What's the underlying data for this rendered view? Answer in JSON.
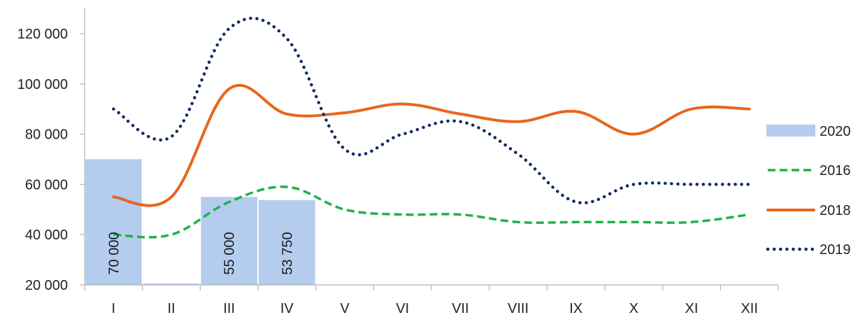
{
  "chart_data": {
    "type": "line",
    "title": "",
    "xlabel": "",
    "ylabel": "",
    "categories": [
      "I",
      "II",
      "III",
      "IV",
      "V",
      "VI",
      "VII",
      "VIII",
      "IX",
      "X",
      "XI",
      "XII"
    ],
    "ylim": [
      20000,
      130000
    ],
    "y_ticks": [
      {
        "value": 20000,
        "label": "20 000"
      },
      {
        "value": 40000,
        "label": "40 000"
      },
      {
        "value": 60000,
        "label": "60 000"
      },
      {
        "value": 80000,
        "label": "80 000"
      },
      {
        "value": 100000,
        "label": "100 000"
      },
      {
        "value": 120000,
        "label": "120 000"
      }
    ],
    "grid": false,
    "legend_position": "right",
    "series": [
      {
        "name": "2020",
        "kind": "bar",
        "color": "#b4cdee",
        "values": [
          70000,
          20000,
          55000,
          53750,
          null,
          null,
          null,
          null,
          null,
          null,
          null,
          null
        ],
        "data_labels": [
          "70 000",
          "",
          "55 000",
          "53 750",
          "",
          "",
          "",
          "",
          "",
          "",
          "",
          ""
        ]
      },
      {
        "name": "2016",
        "kind": "line",
        "style": "dashed",
        "color": "#1fb24a",
        "values": [
          40000,
          40000,
          53000,
          59000,
          50000,
          48000,
          48000,
          45000,
          45000,
          45000,
          45000,
          48000
        ]
      },
      {
        "name": "2018",
        "kind": "line",
        "style": "solid",
        "color": "#e8661c",
        "values": [
          55000,
          55000,
          98000,
          88000,
          88500,
          92000,
          88000,
          85000,
          89000,
          80000,
          90000,
          90000
        ]
      },
      {
        "name": "2019",
        "kind": "line",
        "style": "dotted",
        "color": "#0f2a5c",
        "values": [
          90000,
          79000,
          122000,
          118000,
          74000,
          80000,
          85000,
          72000,
          53000,
          60000,
          60000,
          60000
        ]
      }
    ]
  }
}
